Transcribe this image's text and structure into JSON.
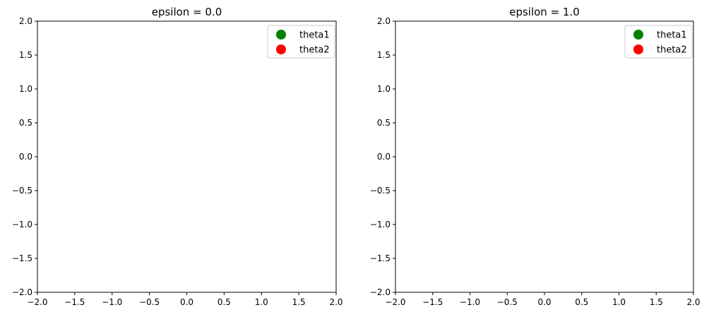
{
  "figure": {
    "legend_placement": "top-right",
    "grid": false
  },
  "chart_data": [
    {
      "type": "scatter",
      "title": "epsilon = 0.0",
      "xlabel": "",
      "ylabel": "",
      "xlim": [
        -2.0,
        2.0
      ],
      "ylim": [
        -2.0,
        2.0
      ],
      "xticks": [
        -2.0,
        -1.5,
        -1.0,
        -0.5,
        0.0,
        0.5,
        1.0,
        1.5,
        2.0
      ],
      "yticks": [
        -2.0,
        -1.5,
        -1.0,
        -0.5,
        0.0,
        0.5,
        1.0,
        1.5,
        2.0
      ],
      "xtick_labels": [
        "−2.0",
        "−1.5",
        "−1.0",
        "−0.5",
        "0.0",
        "0.5",
        "1.0",
        "1.5",
        "2.0"
      ],
      "ytick_labels": [
        "−2.0",
        "−1.5",
        "−1.0",
        "−0.5",
        "0.0",
        "0.5",
        "1.0",
        "1.5",
        "2.0"
      ],
      "series": [
        {
          "name": "theta1",
          "color": "#008000",
          "marker": "circle",
          "points": []
        },
        {
          "name": "theta2",
          "color": "#ff0000",
          "marker": "circle",
          "points": []
        }
      ],
      "legend": {
        "placement": "top-right",
        "entries": [
          "theta1",
          "theta2"
        ]
      }
    },
    {
      "type": "scatter",
      "title": "epsilon = 1.0",
      "xlabel": "",
      "ylabel": "",
      "xlim": [
        -2.0,
        2.0
      ],
      "ylim": [
        -2.0,
        2.0
      ],
      "xticks": [
        -2.0,
        -1.5,
        -1.0,
        -0.5,
        0.0,
        0.5,
        1.0,
        1.5,
        2.0
      ],
      "yticks": [
        -2.0,
        -1.5,
        -1.0,
        -0.5,
        0.0,
        0.5,
        1.0,
        1.5,
        2.0
      ],
      "xtick_labels": [
        "−2.0",
        "−1.5",
        "−1.0",
        "−0.5",
        "0.0",
        "0.5",
        "1.0",
        "1.5",
        "2.0"
      ],
      "ytick_labels": [
        "−2.0",
        "−1.5",
        "−1.0",
        "−0.5",
        "0.0",
        "0.5",
        "1.0",
        "1.5",
        "2.0"
      ],
      "series": [
        {
          "name": "theta1",
          "color": "#008000",
          "marker": "circle",
          "points": []
        },
        {
          "name": "theta2",
          "color": "#ff0000",
          "marker": "circle",
          "points": []
        }
      ],
      "legend": {
        "placement": "top-right",
        "entries": [
          "theta1",
          "theta2"
        ]
      }
    }
  ]
}
